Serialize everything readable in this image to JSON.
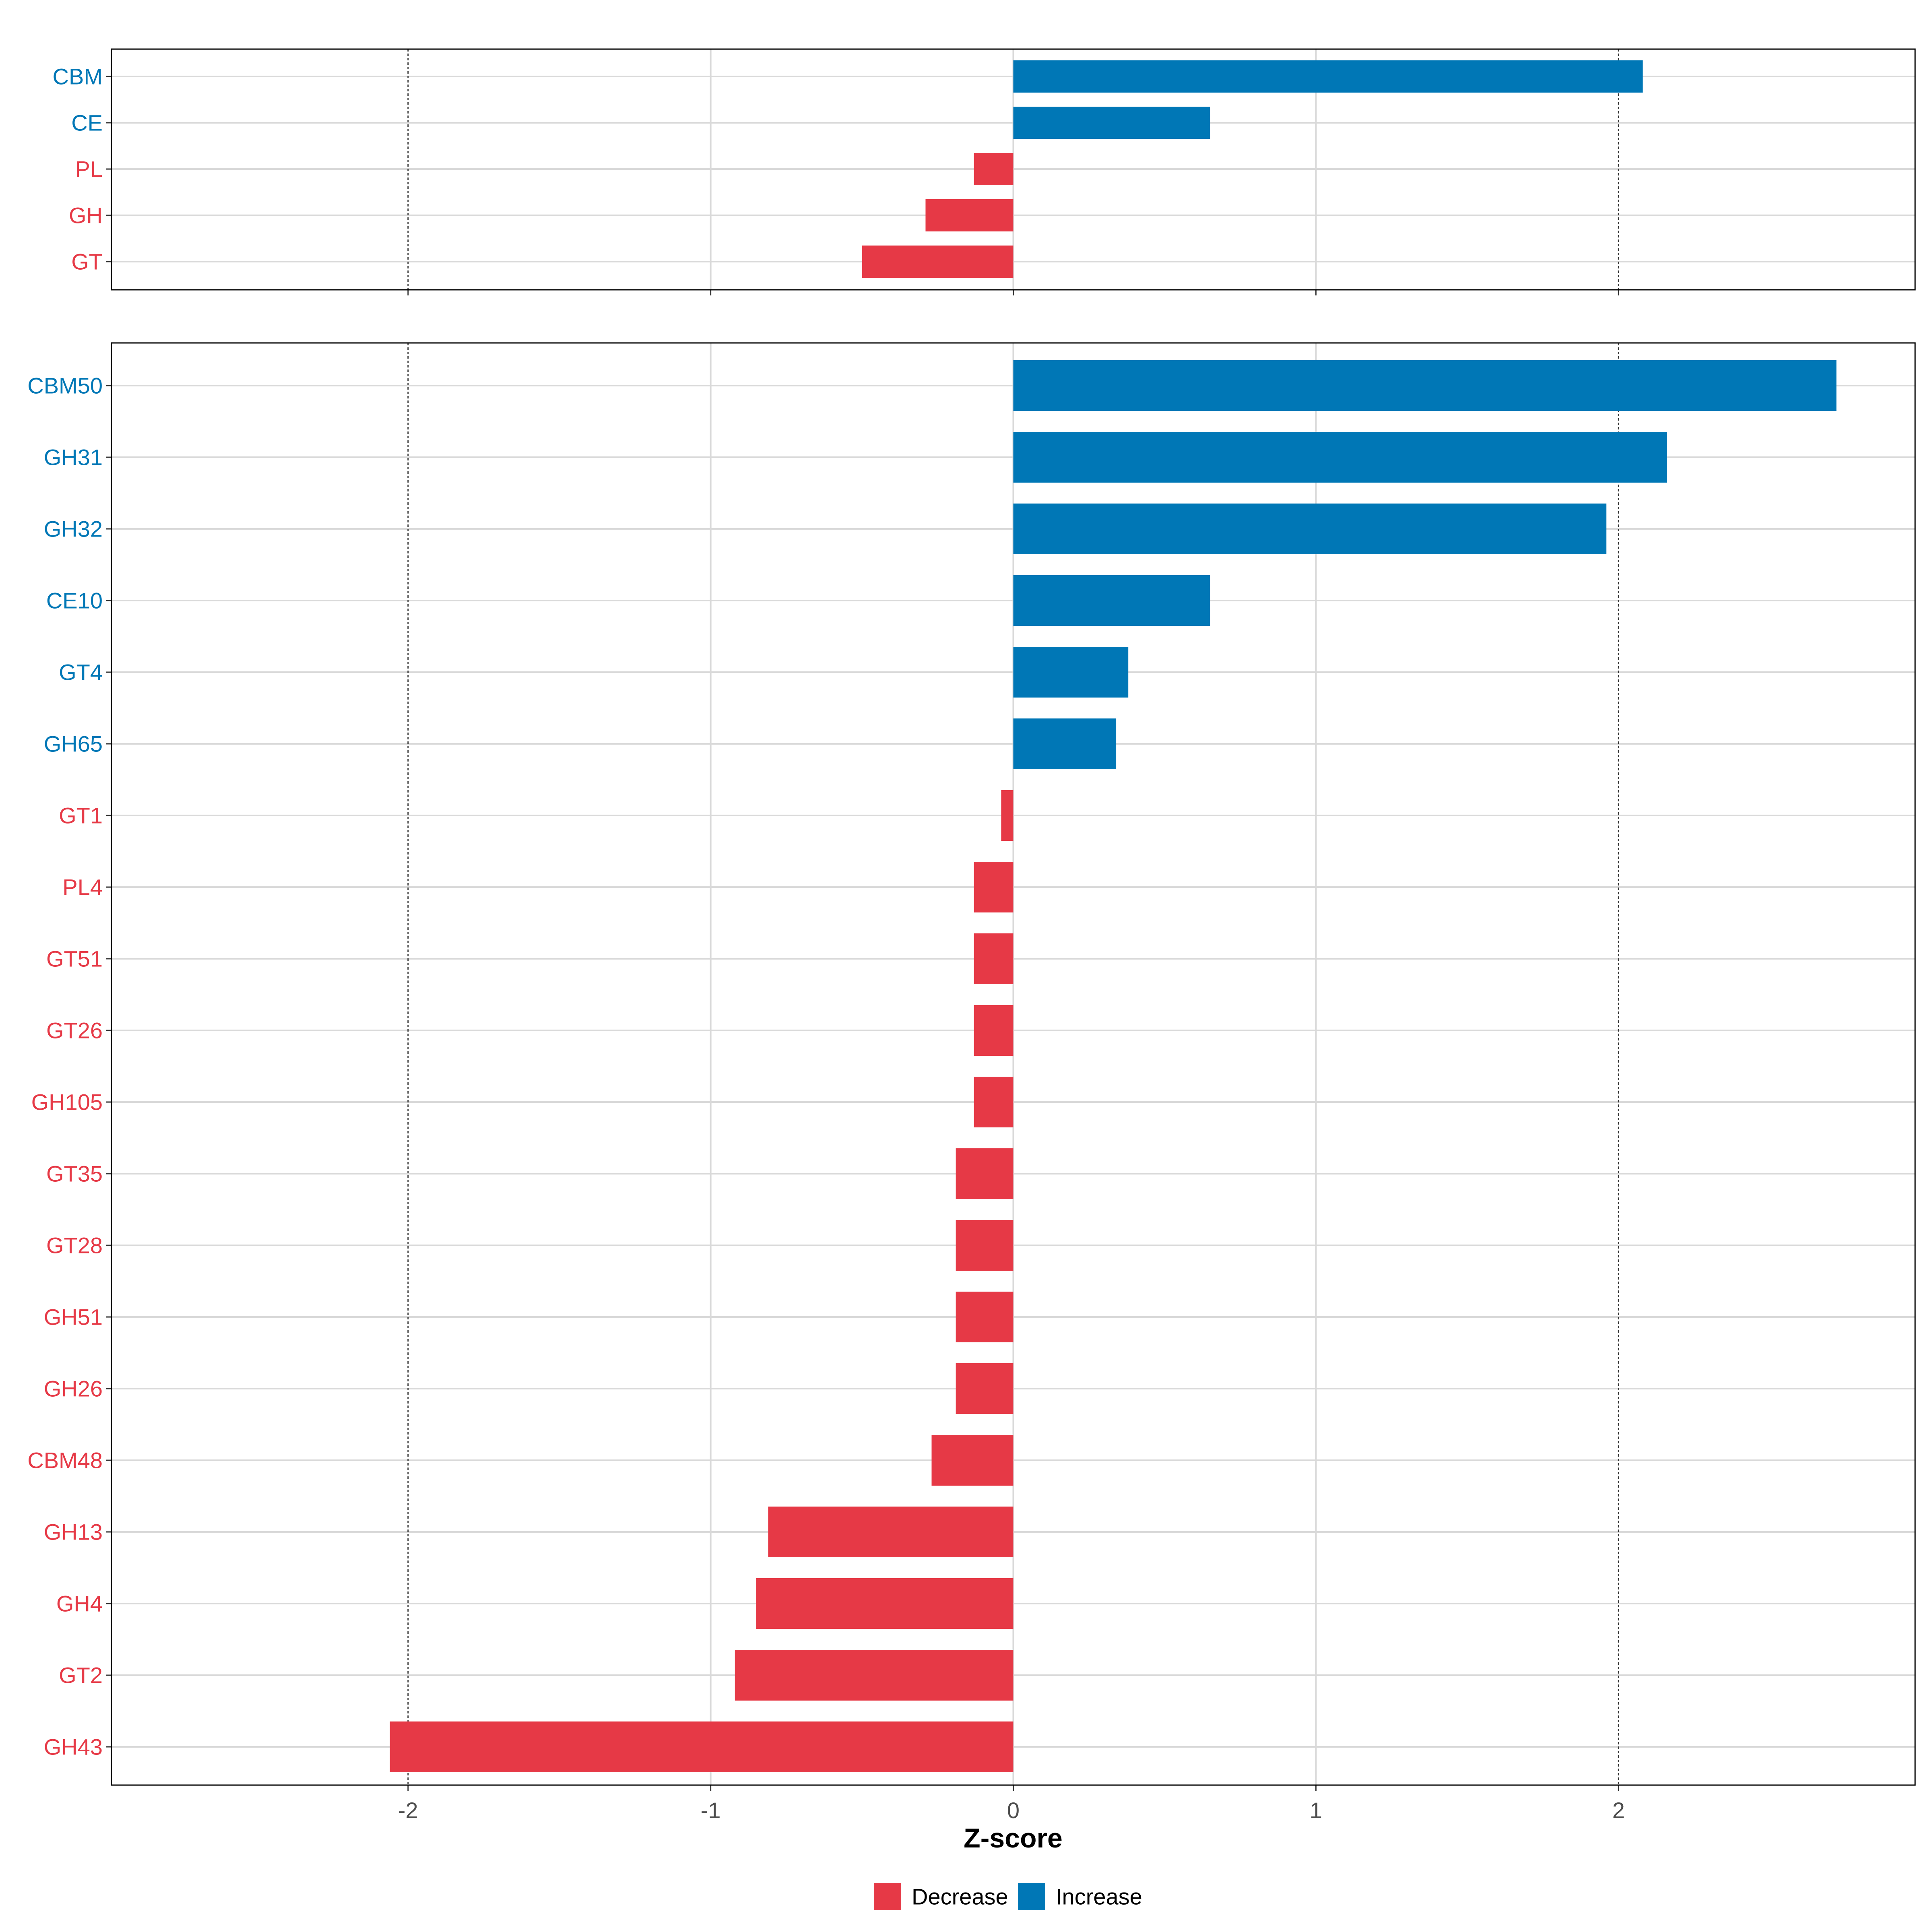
{
  "chart_data": {
    "type": "bar",
    "orientation": "horizontal",
    "xlabel": "Z-score",
    "xlim": [
      -2.98,
      2.98
    ],
    "x_ticks": [
      -2,
      -1,
      0,
      1,
      2
    ],
    "x_tick_labels": [
      "-2",
      "-1",
      "0",
      "1",
      "2"
    ],
    "reference_lines": [
      -2,
      2
    ],
    "grid": true,
    "colors": {
      "Decrease": "#e63946",
      "Increase": "#0077b6"
    },
    "legend": {
      "position": "bottom",
      "entries": [
        {
          "label": "Decrease",
          "color": "#e63946"
        },
        {
          "label": "Increase",
          "color": "#0077b6"
        }
      ]
    },
    "panels": [
      {
        "categories": [
          "CBM",
          "CE",
          "PL",
          "GH",
          "GT"
        ],
        "values": [
          2.08,
          0.65,
          -0.13,
          -0.29,
          -0.5
        ]
      },
      {
        "categories": [
          "CBM50",
          "GH31",
          "GH32",
          "CE10",
          "GT4",
          "GH65",
          "GT1",
          "PL4",
          "GT51",
          "GT26",
          "GH105",
          "GT35",
          "GT28",
          "GH51",
          "GH26",
          "CBM48",
          "GH13",
          "GH4",
          "GT2",
          "GH43"
        ],
        "values": [
          2.72,
          2.16,
          1.96,
          0.65,
          0.38,
          0.34,
          -0.04,
          -0.13,
          -0.13,
          -0.13,
          -0.13,
          -0.19,
          -0.19,
          -0.19,
          -0.19,
          -0.27,
          -0.81,
          -0.85,
          -0.92,
          -2.06
        ]
      }
    ]
  }
}
